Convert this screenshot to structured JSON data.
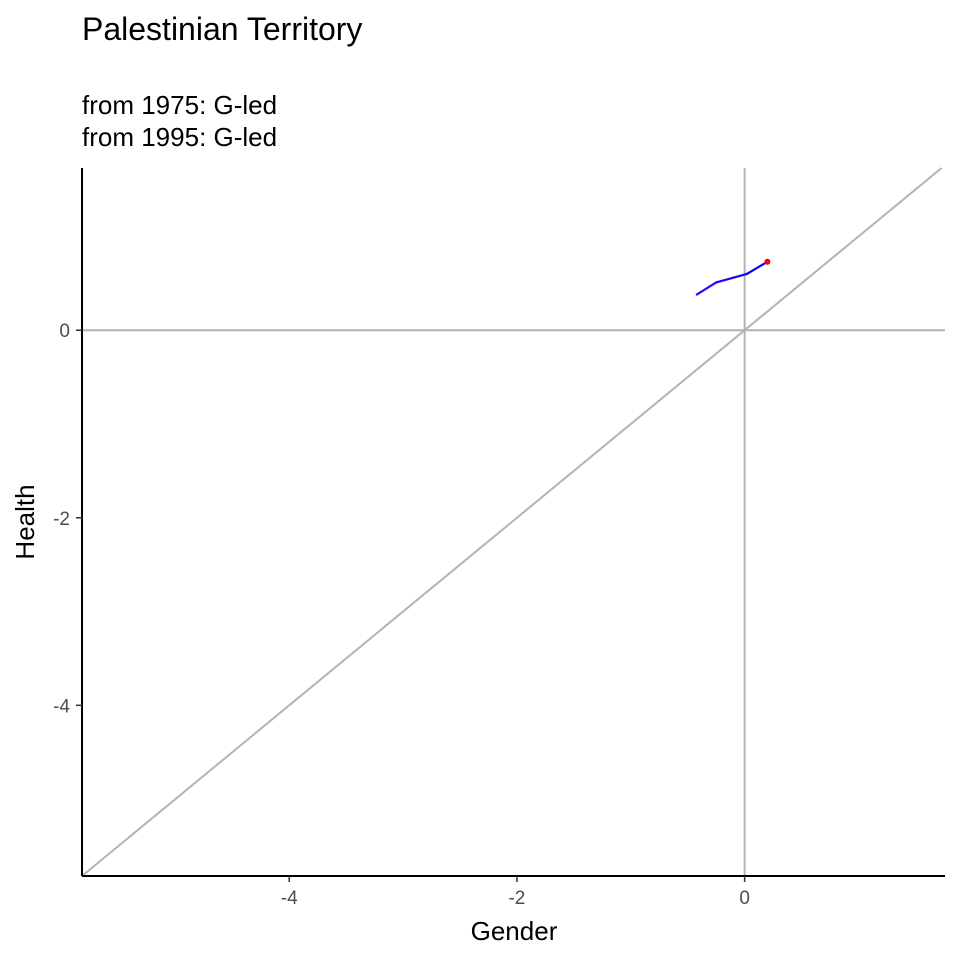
{
  "chart_data": {
    "type": "line",
    "title": "Palestinian Territory",
    "subtitle_lines": [
      "from 1975:  G-led",
      "from 1995:  G-led"
    ],
    "xlabel": "Gender",
    "ylabel": "Health",
    "xlim": [
      -5.82,
      1.76
    ],
    "ylim": [
      -5.82,
      1.73
    ],
    "x_ticks": [
      -4,
      -2,
      0
    ],
    "y_ticks": [
      -4,
      -2,
      0
    ],
    "x_tick_labels": [
      "-4",
      "-2",
      "0"
    ],
    "y_tick_labels": [
      "-4",
      "-2",
      "0"
    ],
    "reference_lines": {
      "h_zero": true,
      "v_zero": true,
      "diagonal": true,
      "color": "#b3b3b3"
    },
    "grid": false,
    "series": [
      {
        "points": [
          {
            "x": -0.42,
            "y": 0.38,
            "color": "#8000ff"
          },
          {
            "x": -0.25,
            "y": 0.51,
            "color": "#4000ff"
          },
          {
            "x": 0.02,
            "y": 0.6,
            "color": "#2000ff"
          },
          {
            "x": 0.2,
            "y": 0.73,
            "color": "#0000ff"
          }
        ]
      }
    ],
    "end_marker": {
      "x": 0.2,
      "y": 0.73,
      "color": "#ff0000"
    }
  }
}
